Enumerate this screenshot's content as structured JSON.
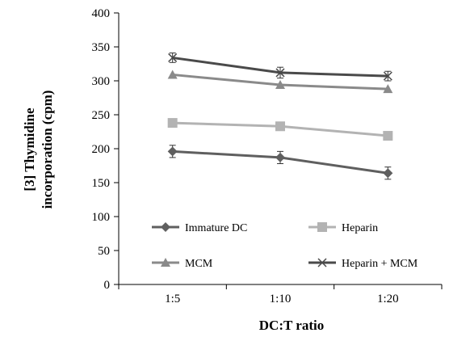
{
  "chart_data": {
    "type": "line",
    "title": "",
    "xlabel": "DC:T ratio",
    "ylabel_lines": [
      "[3] Thymidine",
      "incorporation (cpm)"
    ],
    "categories": [
      "1:5",
      "1:10",
      "1:20"
    ],
    "y_ticks": [
      "0",
      "50",
      "100",
      "150",
      "200",
      "250",
      "300",
      "350",
      "400"
    ],
    "ylim": [
      0,
      400
    ],
    "grid": false,
    "legend_position": "inside-bottom",
    "series": [
      {
        "name": "Immature DC",
        "values": [
          196,
          187,
          164
        ],
        "errors": [
          9,
          9,
          9
        ],
        "color": "#5f5f5f",
        "marker": "diamond"
      },
      {
        "name": "Heparin",
        "values": [
          238,
          233,
          219
        ],
        "errors": [
          0,
          0,
          0
        ],
        "color": "#b3b3b3",
        "marker": "square"
      },
      {
        "name": "MCM",
        "values": [
          309,
          294,
          288
        ],
        "errors": [
          0,
          0,
          0
        ],
        "color": "#8a8a8a",
        "marker": "triangle"
      },
      {
        "name": "Heparin + MCM",
        "values": [
          334,
          312,
          307
        ],
        "errors": [
          7,
          8,
          7
        ],
        "color": "#4a4a4a",
        "marker": "x"
      }
    ]
  }
}
